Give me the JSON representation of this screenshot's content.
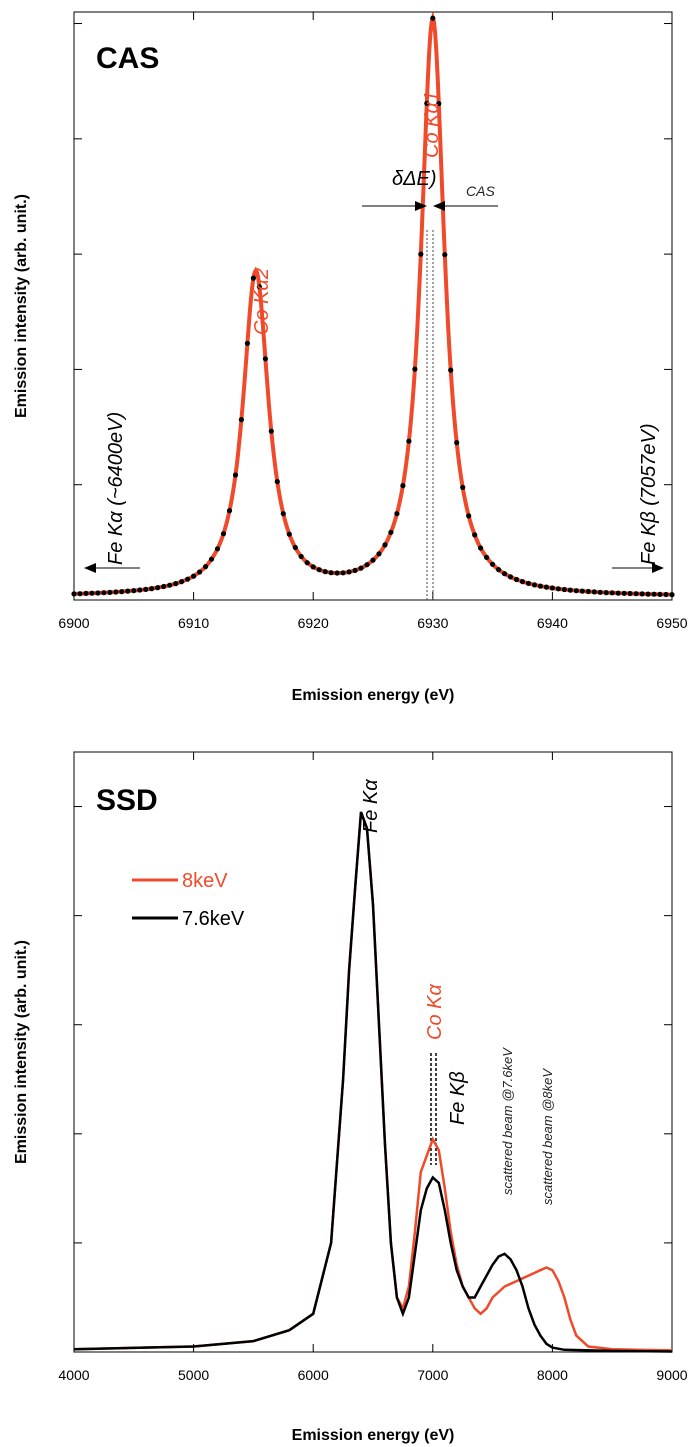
{
  "colors": {
    "red": "#f04a2a",
    "black": "#000000",
    "dots": "#000000"
  },
  "chart_data": [
    {
      "type": "line",
      "title": "CAS",
      "xlabel": "Emission energy (eV)",
      "ylabel": "Emission intensity (arb. unit.)",
      "xlim": [
        6900,
        6950
      ],
      "ylim": [
        0,
        1.02
      ],
      "x_ticks": [
        6900,
        6910,
        6920,
        6930,
        6940,
        6950
      ],
      "x_tick_labels": [
        "6900",
        "6910",
        "6920",
        "6930",
        "6940",
        "6950"
      ],
      "y_tick_labels_shown": false,
      "grid": false,
      "peaks": [
        {
          "label": "Co Kα2",
          "center": 6915.2,
          "height": 0.56,
          "width": 2.6
        },
        {
          "label": "Co Kα1",
          "center": 6930.0,
          "height": 1.0,
          "width": 2.4
        }
      ],
      "series": [
        {
          "name": "fit",
          "style": "line",
          "color": "#f04a2a"
        },
        {
          "name": "data",
          "style": "dots",
          "color": "#000000"
        }
      ],
      "annotations": {
        "kalpha1": "Co Kα1",
        "kalpha2": "Co Kα2",
        "fe_kalpha": "Fe Kα (~6400eV)",
        "fe_kbeta": "Fe Kβ (7057eV)",
        "delta_main": "δΔE)",
        "delta_sub": "CAS"
      }
    },
    {
      "type": "line",
      "title": "SSD",
      "xlabel": "Emission energy (eV)",
      "ylabel": "Emission intensity (arb. unit.)",
      "xlim": [
        4000,
        9000
      ],
      "ylim": [
        0,
        1.1
      ],
      "x_ticks": [
        4000,
        5000,
        6000,
        7000,
        8000,
        9000
      ],
      "x_tick_labels": [
        "4000",
        "5000",
        "6000",
        "7000",
        "8000",
        "9000"
      ],
      "y_tick_labels_shown": false,
      "grid": false,
      "legend_position": "upper-left",
      "series": [
        {
          "name": "8keV",
          "color": "#f04a2a",
          "x": [
            4000,
            5000,
            5500,
            5800,
            6000,
            6150,
            6250,
            6300,
            6350,
            6400,
            6450,
            6500,
            6550,
            6600,
            6650,
            6700,
            6750,
            6800,
            6850,
            6900,
            6950,
            7000,
            7050,
            7100,
            7150,
            7200,
            7250,
            7300,
            7350,
            7400,
            7450,
            7500,
            7600,
            7700,
            7800,
            7900,
            7950,
            8000,
            8050,
            8100,
            8150,
            8200,
            8300,
            8500,
            9000
          ],
          "y": [
            0.005,
            0.01,
            0.02,
            0.04,
            0.07,
            0.2,
            0.5,
            0.7,
            0.85,
            0.99,
            0.96,
            0.82,
            0.6,
            0.38,
            0.2,
            0.1,
            0.08,
            0.12,
            0.22,
            0.33,
            0.36,
            0.39,
            0.37,
            0.3,
            0.22,
            0.16,
            0.12,
            0.1,
            0.08,
            0.07,
            0.08,
            0.1,
            0.12,
            0.13,
            0.14,
            0.15,
            0.155,
            0.15,
            0.13,
            0.1,
            0.06,
            0.03,
            0.01,
            0.005,
            0.003
          ]
        },
        {
          "name": "7.6keV",
          "color": "#000000",
          "x": [
            4000,
            5000,
            5500,
            5800,
            6000,
            6150,
            6250,
            6300,
            6350,
            6400,
            6450,
            6500,
            6550,
            6600,
            6650,
            6700,
            6750,
            6800,
            6850,
            6900,
            6950,
            7000,
            7050,
            7100,
            7150,
            7200,
            7250,
            7300,
            7350,
            7400,
            7450,
            7500,
            7550,
            7600,
            7650,
            7700,
            7750,
            7800,
            7850,
            7900,
            7950,
            8000,
            8100,
            8500,
            9000
          ],
          "y": [
            0.005,
            0.01,
            0.02,
            0.04,
            0.07,
            0.2,
            0.5,
            0.7,
            0.85,
            0.99,
            0.96,
            0.82,
            0.6,
            0.38,
            0.2,
            0.1,
            0.07,
            0.1,
            0.18,
            0.26,
            0.3,
            0.32,
            0.31,
            0.26,
            0.2,
            0.15,
            0.12,
            0.1,
            0.1,
            0.12,
            0.14,
            0.16,
            0.175,
            0.18,
            0.17,
            0.15,
            0.12,
            0.08,
            0.05,
            0.03,
            0.015,
            0.008,
            0.004,
            0.002,
            0.001
          ]
        }
      ],
      "annotations": {
        "fe_kalpha": "Fe Kα",
        "co_kalpha": "Co Kα",
        "fe_kbeta": "Fe Kβ",
        "scat76": "scattered beam @7.6keV",
        "scat8": "scattered beam @8keV"
      }
    }
  ]
}
